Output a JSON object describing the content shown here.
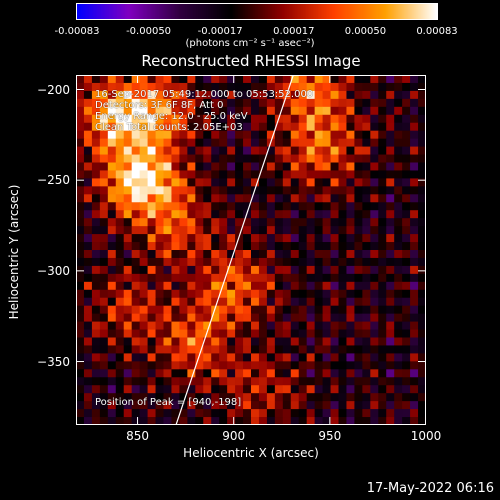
{
  "colorbar": {
    "ticks": [
      "-0.00083",
      "-0.00050",
      "-0.00017",
      "0.00017",
      "0.00050",
      "0.00083"
    ],
    "tick_values": [
      -0.00083,
      -0.0005,
      -0.00017,
      0.00017,
      0.0005,
      0.00083
    ],
    "units": "(photons cm⁻² s⁻¹ asec⁻²)",
    "range": [
      -0.00083,
      0.00083
    ],
    "colors": [
      "#0000ff",
      "#8000c0",
      "#300040",
      "#000000",
      "#900000",
      "#ff4000",
      "#ffa000",
      "#ffffff"
    ]
  },
  "chart_data": {
    "type": "heatmap",
    "title": "Reconstructed RHESSI Image",
    "xlabel": "Heliocentric X (arcsec)",
    "ylabel": "Heliocentric Y (arcsec)",
    "xlim": [
      818,
      1000
    ],
    "ylim": [
      -385,
      -192
    ],
    "xticks": [
      850,
      900,
      950,
      1000
    ],
    "yticks": [
      -200,
      -250,
      -300,
      -350
    ],
    "annotations": [
      "16-Sep-2017 05:49:12.000 to 05:53:52.000",
      "Detectors: 3F 6F 8F, Att 0",
      "Energy Range: 12.0 - 25.0 keV",
      "Clean    Total counts: 2.05E+03"
    ],
    "peak_text": "Position of Peak = [940,-198]",
    "peak": [
      940,
      -198
    ],
    "limb_line": [
      [
        870,
        -385
      ],
      [
        931,
        -192
      ]
    ],
    "sources": [
      {
        "x": 852,
        "y": -250,
        "amp": 1.0
      },
      {
        "x": 838,
        "y": -215,
        "amp": 0.75
      },
      {
        "x": 860,
        "y": -212,
        "amp": 0.6
      },
      {
        "x": 870,
        "y": -275,
        "amp": 0.45
      },
      {
        "x": 900,
        "y": -310,
        "amp": 0.55
      },
      {
        "x": 880,
        "y": -340,
        "amp": 0.5
      },
      {
        "x": 945,
        "y": -232,
        "amp": 0.55
      },
      {
        "x": 940,
        "y": -200,
        "amp": 0.6
      },
      {
        "x": 915,
        "y": -365,
        "amp": 0.35
      },
      {
        "x": 845,
        "y": -320,
        "amp": 0.4
      }
    ]
  },
  "timestamp": "17-May-2022 06:16"
}
